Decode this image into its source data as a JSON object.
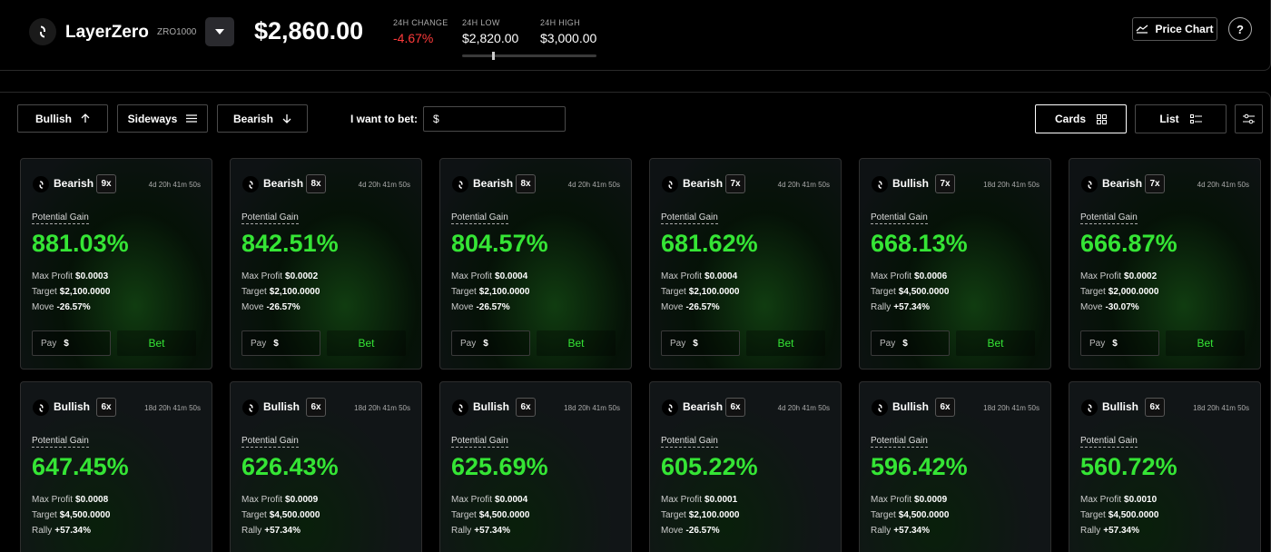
{
  "header": {
    "app_name": "LayerZero",
    "ticker": "ZRO1000",
    "price": "$2,860.00",
    "change_label": "24H CHANGE",
    "change_value": "-4.67%",
    "low_label": "24H LOW",
    "low_value": "$2,820.00",
    "high_label": "24H HIGH",
    "high_value": "$3,000.00",
    "range_position": 0.22,
    "price_chart_label": "Price Chart",
    "help_label": "?"
  },
  "toolbar": {
    "bullish_label": "Bullish",
    "sideways_label": "Sideways",
    "bearish_label": "Bearish",
    "bet_label": "I want to bet:",
    "bet_input_value": "$",
    "cards_label": "Cards",
    "list_label": "List",
    "active_view": "Cards"
  },
  "card_common": {
    "potential_gain_label": "Potential Gain",
    "max_profit_label": "Max Profit",
    "target_label": "Target",
    "pay_label": "Pay",
    "pay_value": "$",
    "bet_label": "Bet"
  },
  "cards": [
    {
      "direction": "Bearish",
      "leverage": "9x",
      "time": "4d 20h 41m 50s",
      "gain": "881.03%",
      "max_profit": "$0.0003",
      "target": "$2,100.0000",
      "move_label": "Move",
      "move_value": "-26.57%"
    },
    {
      "direction": "Bearish",
      "leverage": "8x",
      "time": "4d 20h 41m 50s",
      "gain": "842.51%",
      "max_profit": "$0.0002",
      "target": "$2,100.0000",
      "move_label": "Move",
      "move_value": "-26.57%"
    },
    {
      "direction": "Bearish",
      "leverage": "8x",
      "time": "4d 20h 41m 50s",
      "gain": "804.57%",
      "max_profit": "$0.0004",
      "target": "$2,100.0000",
      "move_label": "Move",
      "move_value": "-26.57%"
    },
    {
      "direction": "Bearish",
      "leverage": "7x",
      "time": "4d 20h 41m 50s",
      "gain": "681.62%",
      "max_profit": "$0.0004",
      "target": "$2,100.0000",
      "move_label": "Move",
      "move_value": "-26.57%"
    },
    {
      "direction": "Bullish",
      "leverage": "7x",
      "time": "18d 20h 41m 50s",
      "gain": "668.13%",
      "max_profit": "$0.0006",
      "target": "$4,500.0000",
      "move_label": "Rally",
      "move_value": "+57.34%"
    },
    {
      "direction": "Bearish",
      "leverage": "7x",
      "time": "4d 20h 41m 50s",
      "gain": "666.87%",
      "max_profit": "$0.0002",
      "target": "$2,000.0000",
      "move_label": "Move",
      "move_value": "-30.07%"
    },
    {
      "direction": "Bullish",
      "leverage": "6x",
      "time": "18d 20h 41m 50s",
      "gain": "647.45%",
      "max_profit": "$0.0008",
      "target": "$4,500.0000",
      "move_label": "Rally",
      "move_value": "+57.34%"
    },
    {
      "direction": "Bullish",
      "leverage": "6x",
      "time": "18d 20h 41m 50s",
      "gain": "626.43%",
      "max_profit": "$0.0009",
      "target": "$4,500.0000",
      "move_label": "Rally",
      "move_value": "+57.34%"
    },
    {
      "direction": "Bullish",
      "leverage": "6x",
      "time": "18d 20h 41m 50s",
      "gain": "625.69%",
      "max_profit": "$0.0004",
      "target": "$4,500.0000",
      "move_label": "Rally",
      "move_value": "+57.34%"
    },
    {
      "direction": "Bearish",
      "leverage": "6x",
      "time": "4d 20h 41m 50s",
      "gain": "605.22%",
      "max_profit": "$0.0001",
      "target": "$2,100.0000",
      "move_label": "Move",
      "move_value": "-26.57%"
    },
    {
      "direction": "Bullish",
      "leverage": "6x",
      "time": "18d 20h 41m 50s",
      "gain": "596.42%",
      "max_profit": "$0.0009",
      "target": "$4,500.0000",
      "move_label": "Rally",
      "move_value": "+57.34%"
    },
    {
      "direction": "Bullish",
      "leverage": "6x",
      "time": "18d 20h 41m 50s",
      "gain": "560.72%",
      "max_profit": "$0.0010",
      "target": "$4,500.0000",
      "move_label": "Rally",
      "move_value": "+57.34%"
    }
  ],
  "colors": {
    "gain_green": "#35e535",
    "negative_red": "#ff3b3b",
    "background": "#000000"
  },
  "icons": {
    "logo": "layerzero-logo-icon",
    "dropdown": "caret-down-icon",
    "chart": "trend-line-icon",
    "bullish": "arrow-up-icon",
    "sideways": "menu-lines-icon",
    "bearish": "arrow-down-icon",
    "cards": "grid-icon",
    "list": "list-icon",
    "settings": "sliders-icon"
  }
}
